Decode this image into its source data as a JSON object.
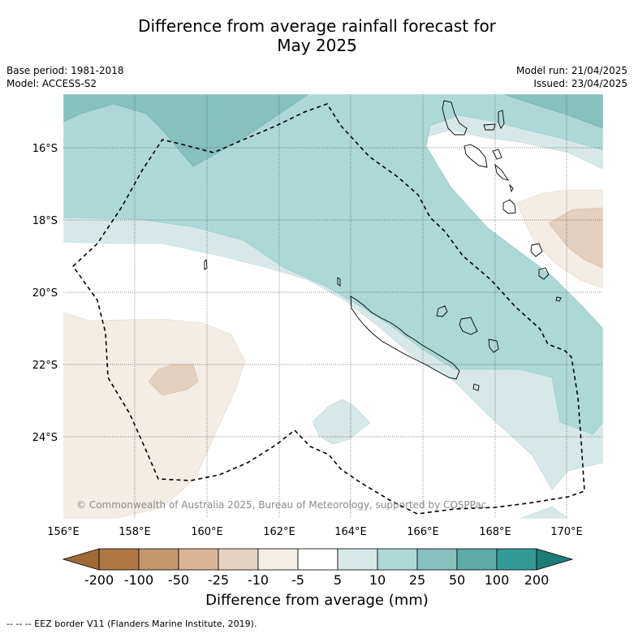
{
  "title_line1": "Difference from average rainfall forecast for",
  "title_line2": "May 2025",
  "base_period": "Base period: 1981-2018",
  "model": "Model: ACCESS-S2",
  "model_run": "Model run: 21/04/2025",
  "issued": "Issued: 23/04/2025",
  "copyright": "© Commonwealth of Australia 2025, Bureau of Meteorology, supported by COSPPac",
  "lat_labels": [
    "16°S",
    "18°S",
    "20°S",
    "22°S",
    "24°S"
  ],
  "lon_labels": [
    "156°E",
    "158°E",
    "160°E",
    "162°E",
    "164°E",
    "166°E",
    "168°E",
    "170°E"
  ],
  "colorbar": {
    "labels": [
      "-200",
      "-100",
      "-50",
      "-25",
      "-10",
      "-5",
      "5",
      "10",
      "25",
      "50",
      "100",
      "200"
    ],
    "colors": [
      "#a06a37",
      "#ae7641",
      "#c4976a",
      "#d8b596",
      "#e6d2c0",
      "#f4eee7",
      "#ffffff",
      "#d6e9e8",
      "#aed8d6",
      "#86c1be",
      "#5daba8",
      "#349a95",
      "#1e7c78"
    ],
    "title": "Difference from average (mm)"
  },
  "footnote": "--  --  -- EEZ border V11 (Flanders Marine Institute, 2019)."
}
